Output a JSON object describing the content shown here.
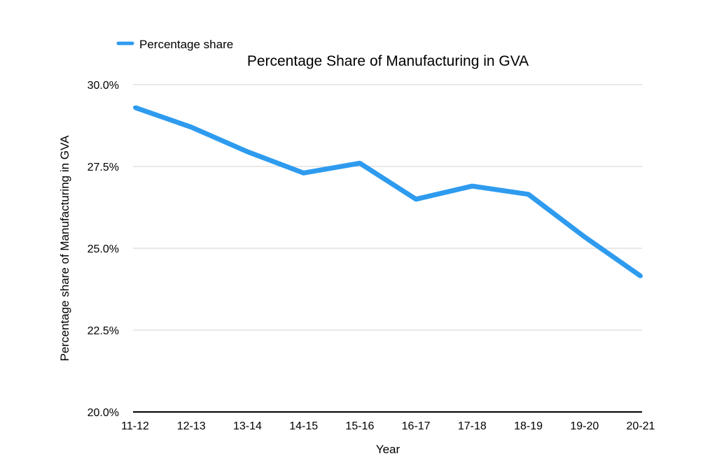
{
  "chart_data": {
    "type": "line",
    "title": "Percentage Share of Manufacturing in GVA",
    "xlabel": "Year",
    "ylabel": "Percentage share of Manufacturing in GVA",
    "categories": [
      "11-12",
      "12-13",
      "13-14",
      "14-15",
      "15-16",
      "16-17",
      "17-18",
      "18-19",
      "19-20",
      "20-21"
    ],
    "series": [
      {
        "name": "Percentage share",
        "color": "#2E9BEF",
        "values": [
          29.3,
          28.7,
          27.95,
          27.3,
          27.6,
          26.5,
          26.9,
          26.65,
          25.35,
          24.15
        ]
      }
    ],
    "ylim": [
      20.0,
      30.0
    ],
    "yticks": [
      20.0,
      22.5,
      25.0,
      27.5,
      30.0
    ],
    "ytick_labels": [
      "20.0%",
      "22.5%",
      "25.0%",
      "27.5%",
      "30.0%"
    ],
    "grid": true,
    "grid_color": "#D0D0D0",
    "baseline_color": "#000000",
    "legend_position": "top-left"
  }
}
